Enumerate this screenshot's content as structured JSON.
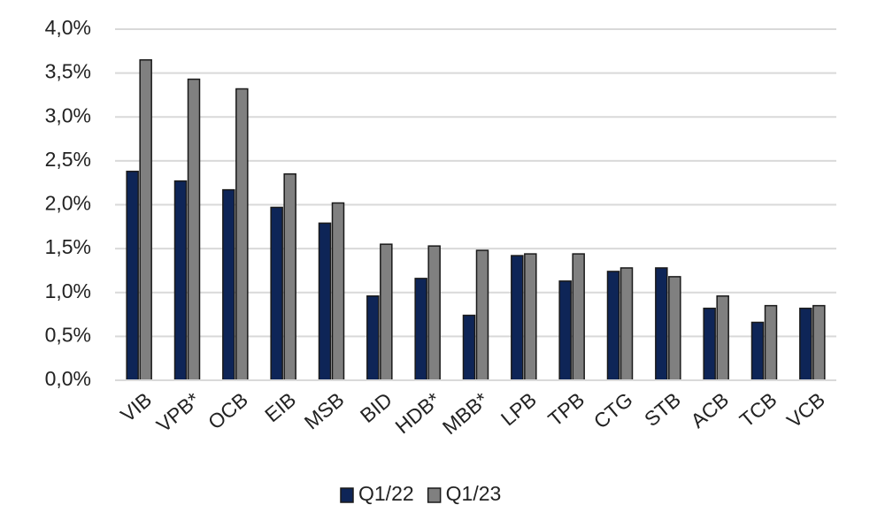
{
  "chart_data": {
    "type": "bar",
    "categories": [
      "VIB",
      "VPB*",
      "OCB",
      "EIB",
      "MSB",
      "BID",
      "HDB*",
      "MBB*",
      "LPB",
      "TPB",
      "CTG",
      "STB",
      "ACB",
      "TCB",
      "VCB"
    ],
    "series": [
      {
        "name": "Q1/22",
        "color": "#0e2557",
        "values": [
          2.38,
          2.27,
          2.17,
          1.97,
          1.79,
          0.96,
          1.16,
          0.74,
          1.42,
          1.13,
          1.24,
          1.28,
          0.82,
          0.66,
          0.82
        ]
      },
      {
        "name": "Q1/23",
        "color": "#808080",
        "values": [
          3.65,
          3.43,
          3.32,
          2.35,
          2.02,
          1.55,
          1.53,
          1.48,
          1.44,
          1.44,
          1.28,
          1.18,
          0.96,
          0.85,
          0.85
        ]
      }
    ],
    "ylim": [
      0,
      4
    ],
    "yticks": [
      {
        "value": 0,
        "label": "0,0%"
      },
      {
        "value": 0.5,
        "label": "0,5%"
      },
      {
        "value": 1,
        "label": "1,0%"
      },
      {
        "value": 1.5,
        "label": "1,5%"
      },
      {
        "value": 2,
        "label": "2,0%"
      },
      {
        "value": 2.5,
        "label": "2,5%"
      },
      {
        "value": 3,
        "label": "3,0%"
      },
      {
        "value": 3.5,
        "label": "3,5%"
      },
      {
        "value": 4,
        "label": "4,0%"
      }
    ],
    "grid": true,
    "legend": "bottom"
  }
}
